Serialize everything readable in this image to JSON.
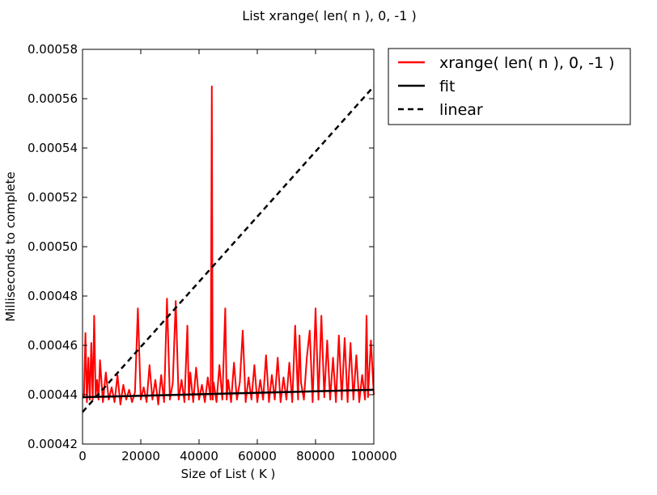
{
  "chart_data": {
    "type": "line",
    "title": "List xrange( len( n ), 0, -1 )",
    "xlabel": "Size of List ( K )",
    "ylabel": "Milliseconds to complete",
    "xlim": [
      0,
      100000
    ],
    "ylim": [
      0.00042,
      0.00058
    ],
    "xticks": [
      0,
      20000,
      40000,
      60000,
      80000,
      100000
    ],
    "xtick_labels": [
      "0",
      "20000",
      "40000",
      "60000",
      "80000",
      "100000"
    ],
    "yticks": [
      0.00042,
      0.00044,
      0.00046,
      0.00048,
      0.0005,
      0.00052,
      0.00054,
      0.00056,
      0.00058
    ],
    "ytick_labels": [
      "0.00042",
      "0.00044",
      "0.00046",
      "0.00048",
      "0.00050",
      "0.00052",
      "0.00054",
      "0.00056",
      "0.00058"
    ],
    "grid": false,
    "legend_position": "outside-top-right",
    "series": [
      {
        "name": "xrange( len( n ), 0, -1 )",
        "color": "#ff0000",
        "style": "solid",
        "x": [
          500,
          1000,
          1500,
          2000,
          2500,
          3000,
          3500,
          4000,
          4500,
          5000,
          5500,
          6000,
          7000,
          8000,
          9000,
          10000,
          11000,
          12000,
          13000,
          14000,
          15000,
          16000,
          17000,
          18000,
          19000,
          20000,
          21000,
          22000,
          23000,
          24000,
          25000,
          26000,
          27000,
          28000,
          29000,
          30000,
          31000,
          32000,
          33000,
          34000,
          35000,
          36000,
          36500,
          37000,
          38000,
          39000,
          40000,
          41000,
          42000,
          43000,
          44000,
          44400,
          44700,
          45000,
          46000,
          47000,
          48000,
          49000,
          49500,
          50000,
          51000,
          52000,
          53000,
          54000,
          55000,
          56000,
          57000,
          58000,
          59000,
          60000,
          61000,
          62000,
          63000,
          64000,
          65000,
          66000,
          67000,
          68000,
          69000,
          70000,
          71000,
          72000,
          73000,
          74000,
          74500,
          75000,
          76000,
          77000,
          78000,
          79000,
          80000,
          81000,
          82000,
          83000,
          84000,
          85000,
          86000,
          87000,
          88000,
          89000,
          90000,
          91000,
          92000,
          93000,
          94000,
          95000,
          96000,
          97000,
          97500,
          98000,
          99000,
          100000
        ],
        "values": [
          0.000439,
          0.000465,
          0.000437,
          0.000455,
          0.000438,
          0.000461,
          0.000438,
          0.000472,
          0.000439,
          0.000446,
          0.000438,
          0.000454,
          0.000437,
          0.000449,
          0.000438,
          0.000443,
          0.000437,
          0.000448,
          0.000436,
          0.000444,
          0.000438,
          0.000442,
          0.000437,
          0.000441,
          0.000475,
          0.000438,
          0.000443,
          0.000437,
          0.000452,
          0.000438,
          0.000446,
          0.000436,
          0.000448,
          0.000437,
          0.000479,
          0.000438,
          0.000445,
          0.000478,
          0.000438,
          0.000446,
          0.000437,
          0.000468,
          0.000438,
          0.000449,
          0.000437,
          0.000451,
          0.000438,
          0.000444,
          0.000437,
          0.000447,
          0.000438,
          0.000565,
          0.000438,
          0.000445,
          0.000437,
          0.000452,
          0.000438,
          0.000475,
          0.000438,
          0.000446,
          0.000437,
          0.000453,
          0.000438,
          0.000445,
          0.000466,
          0.000437,
          0.000447,
          0.000438,
          0.000452,
          0.000437,
          0.000446,
          0.000438,
          0.000456,
          0.000437,
          0.000448,
          0.000438,
          0.000455,
          0.000437,
          0.000447,
          0.000438,
          0.000453,
          0.000437,
          0.000468,
          0.000438,
          0.000464,
          0.000445,
          0.000438,
          0.000455,
          0.000466,
          0.000437,
          0.000475,
          0.000438,
          0.000472,
          0.000439,
          0.000462,
          0.000438,
          0.000455,
          0.000437,
          0.000464,
          0.000438,
          0.000463,
          0.000437,
          0.000461,
          0.000438,
          0.000456,
          0.000437,
          0.000448,
          0.000438,
          0.000472,
          0.000439,
          0.000462,
          0.00044
        ]
      },
      {
        "name": "fit",
        "color": "#000000",
        "style": "solid",
        "x": [
          0,
          100000
        ],
        "values": [
          0.000439,
          0.000442
        ]
      },
      {
        "name": "linear",
        "color": "#000000",
        "style": "dashed",
        "x": [
          0,
          100000
        ],
        "values": [
          0.000433,
          0.000565
        ]
      }
    ]
  }
}
